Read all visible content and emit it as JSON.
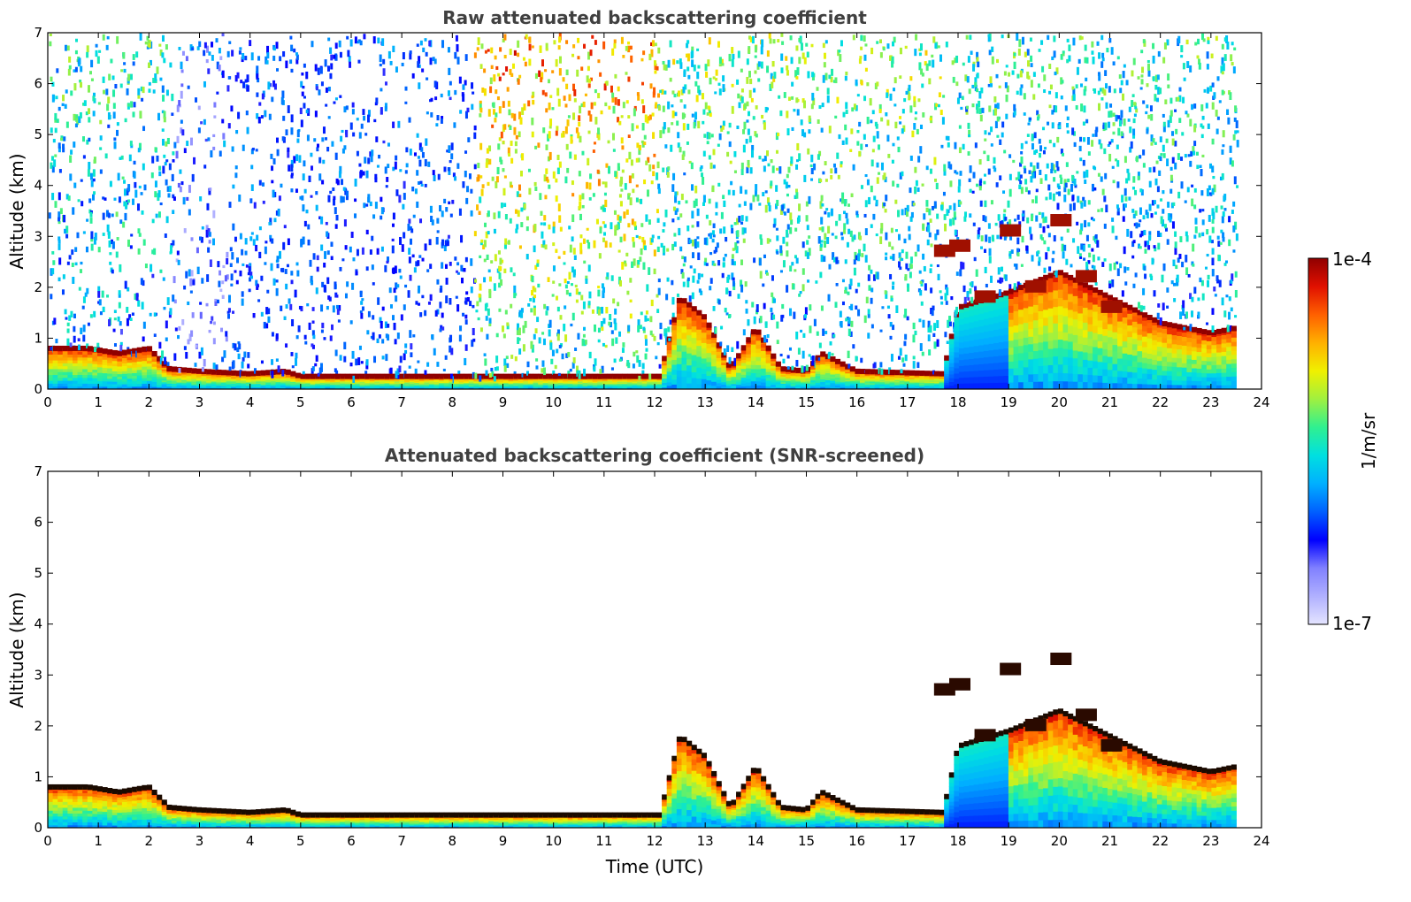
{
  "chart_data": [
    {
      "type": "heatmap",
      "title": "Raw attenuated backscattering coefficient",
      "xlabel": "",
      "ylabel": "Altitude (km)",
      "xlim": [
        0,
        24
      ],
      "ylim": [
        0,
        7
      ],
      "xticks": [
        "0",
        "1",
        "2",
        "3",
        "4",
        "5",
        "6",
        "7",
        "8",
        "9",
        "10",
        "11",
        "12",
        "13",
        "14",
        "15",
        "16",
        "17",
        "18",
        "19",
        "20",
        "21",
        "22",
        "23",
        "24"
      ],
      "yticks": [
        "0",
        "1",
        "2",
        "3",
        "4",
        "5",
        "6",
        "7"
      ],
      "data_end_time": 23.5,
      "layers": [
        {
          "name": "boundary layer top (km)",
          "x": [
            0,
            0.8,
            1.4,
            2.0,
            2.4,
            3.0,
            4.0,
            4.7,
            5,
            8,
            11,
            12.1,
            12.5,
            13.0,
            13.5,
            14.0,
            14.5,
            15.0,
            15.3,
            16,
            17.7,
            18,
            19,
            20,
            21,
            22,
            23,
            23.5
          ],
          "y": [
            0.8,
            0.8,
            0.7,
            0.8,
            0.4,
            0.35,
            0.3,
            0.35,
            0.25,
            0.25,
            0.25,
            0.25,
            1.8,
            1.4,
            0.4,
            1.2,
            0.4,
            0.35,
            0.7,
            0.35,
            0.3,
            1.6,
            1.9,
            2.3,
            1.8,
            1.3,
            1.1,
            1.2
          ]
        },
        {
          "name": "elevated cloud layers (km)",
          "x": [
            17.7,
            18.0,
            18.5,
            19.0,
            19.5,
            20.0,
            20.5,
            21.0
          ],
          "y": [
            2.7,
            2.8,
            1.8,
            3.1,
            2.0,
            3.3,
            2.2,
            1.6
          ]
        }
      ],
      "noise_segments": [
        {
          "start": 0.0,
          "end": 2.4,
          "level": "medium"
        },
        {
          "start": 2.4,
          "end": 3.5,
          "level": "low"
        },
        {
          "start": 3.5,
          "end": 8.4,
          "level": "low-blue"
        },
        {
          "start": 8.4,
          "end": 12.0,
          "level": "high"
        },
        {
          "start": 12.0,
          "end": 17.7,
          "level": "medium-high"
        },
        {
          "start": 17.7,
          "end": 23.5,
          "level": "medium"
        }
      ]
    },
    {
      "type": "heatmap",
      "title": "Attenuated backscattering coefficient (SNR-screened)",
      "xlabel": "Time (UTC)",
      "ylabel": "Altitude (km)",
      "xlim": [
        0,
        24
      ],
      "ylim": [
        0,
        7
      ],
      "xticks": [
        "0",
        "1",
        "2",
        "3",
        "4",
        "5",
        "6",
        "7",
        "8",
        "9",
        "10",
        "11",
        "12",
        "13",
        "14",
        "15",
        "16",
        "17",
        "18",
        "19",
        "20",
        "21",
        "22",
        "23",
        "24"
      ],
      "yticks": [
        "0",
        "1",
        "2",
        "3",
        "4",
        "5",
        "6",
        "7"
      ],
      "data_end_time": 23.5,
      "screened": true
    }
  ],
  "colorbar": {
    "label": "1/m/sr",
    "min_label": "1e-7",
    "max_label": "1e-4",
    "scale": "log",
    "colors": [
      "#e4e4ff",
      "#b0b0ff",
      "#8080ff",
      "#0000ff",
      "#0060ff",
      "#00b0ff",
      "#00e0e0",
      "#30f090",
      "#a0f040",
      "#f0f000",
      "#ffb000",
      "#ff6000",
      "#e01000",
      "#900000"
    ]
  }
}
